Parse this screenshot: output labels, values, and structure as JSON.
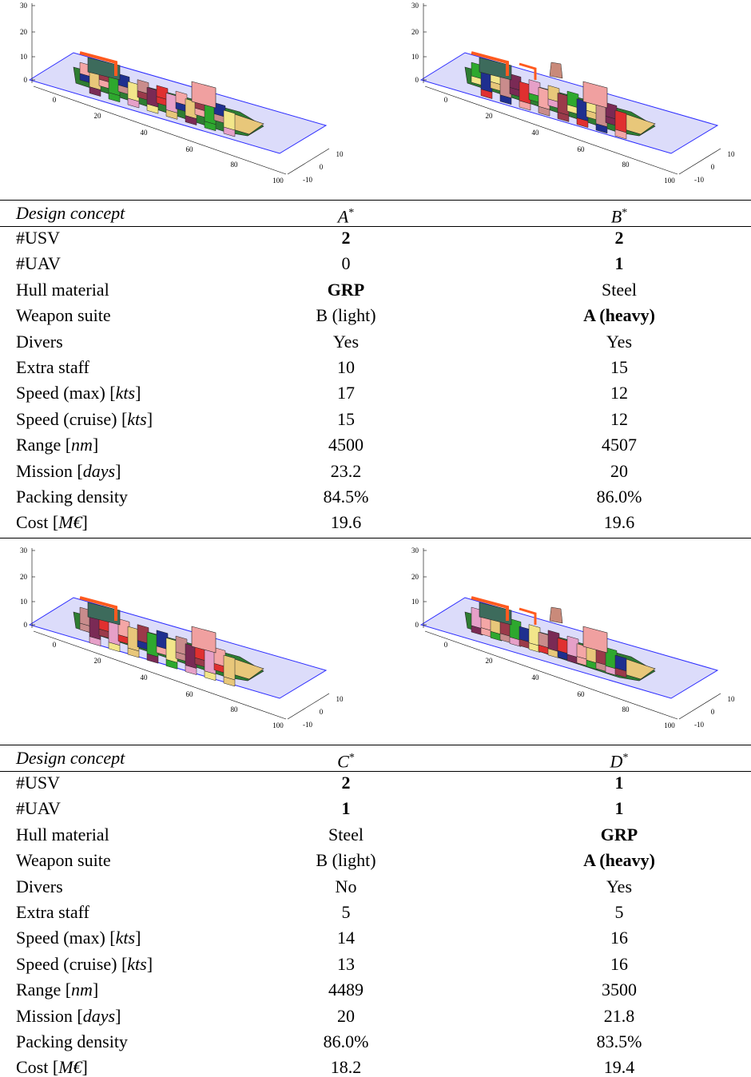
{
  "plots": [
    {
      "z_ticks": [
        30,
        20,
        10,
        0
      ],
      "x_ticks": [
        0,
        20,
        40,
        60,
        80,
        100
      ],
      "y_ticks": [
        10,
        0,
        -10
      ]
    },
    {
      "z_ticks": [
        30,
        20,
        10,
        0
      ],
      "x_ticks": [
        0,
        20,
        40,
        60,
        80,
        100
      ],
      "y_ticks": [
        10,
        0,
        -10
      ]
    },
    {
      "z_ticks": [
        30,
        20,
        10,
        0
      ],
      "x_ticks": [
        0,
        20,
        40,
        60,
        80,
        100
      ],
      "y_ticks": [
        10,
        0,
        -10
      ]
    },
    {
      "z_ticks": [
        30,
        20,
        10,
        0
      ],
      "x_ticks": [
        0,
        20,
        40,
        60,
        80,
        100
      ],
      "y_ticks": [
        10,
        0,
        -10
      ]
    }
  ],
  "tables": [
    {
      "header": [
        "Design concept",
        "A*",
        "B*"
      ],
      "rows": [
        {
          "label": "#USV",
          "cells": [
            {
              "text": "2",
              "bold": true
            },
            {
              "text": "2",
              "bold": true
            }
          ]
        },
        {
          "label": "#UAV",
          "cells": [
            {
              "text": "0",
              "bold": false
            },
            {
              "text": "1",
              "bold": true
            }
          ]
        },
        {
          "label": "Hull material",
          "cells": [
            {
              "text": "GRP",
              "bold": true
            },
            {
              "text": "Steel",
              "bold": false
            }
          ]
        },
        {
          "label": "Weapon suite",
          "cells": [
            {
              "text": "B (light)",
              "bold": false
            },
            {
              "text": "A (heavy)",
              "bold": true
            }
          ]
        },
        {
          "label": "Divers",
          "cells": [
            {
              "text": "Yes",
              "bold": false
            },
            {
              "text": "Yes",
              "bold": false
            }
          ]
        },
        {
          "label": "Extra staff",
          "cells": [
            {
              "text": "10",
              "bold": false
            },
            {
              "text": "15",
              "bold": false
            }
          ]
        },
        {
          "label": "Speed (max) [kts]",
          "cells": [
            {
              "text": "17",
              "bold": false
            },
            {
              "text": "12",
              "bold": false
            }
          ]
        },
        {
          "label": "Speed (cruise) [kts]",
          "cells": [
            {
              "text": "15",
              "bold": false
            },
            {
              "text": "12",
              "bold": false
            }
          ]
        },
        {
          "label": "Range [nm]",
          "cells": [
            {
              "text": "4500",
              "bold": false
            },
            {
              "text": "4507",
              "bold": false
            }
          ]
        },
        {
          "label": "Mission [days]",
          "cells": [
            {
              "text": "23.2",
              "bold": false
            },
            {
              "text": "20",
              "bold": false
            }
          ]
        },
        {
          "label": "Packing density",
          "cells": [
            {
              "text": "84.5%",
              "bold": false
            },
            {
              "text": "86.0%",
              "bold": false
            }
          ]
        },
        {
          "label": "Cost [M€]",
          "cells": [
            {
              "text": "19.6",
              "bold": false
            },
            {
              "text": "19.6",
              "bold": false
            }
          ]
        }
      ]
    },
    {
      "header": [
        "Design concept",
        "C*",
        "D*"
      ],
      "rows": [
        {
          "label": "#USV",
          "cells": [
            {
              "text": "2",
              "bold": true
            },
            {
              "text": "1",
              "bold": true
            }
          ]
        },
        {
          "label": "#UAV",
          "cells": [
            {
              "text": "1",
              "bold": true
            },
            {
              "text": "1",
              "bold": true
            }
          ]
        },
        {
          "label": "Hull material",
          "cells": [
            {
              "text": "Steel",
              "bold": false
            },
            {
              "text": "GRP",
              "bold": true
            }
          ]
        },
        {
          "label": "Weapon suite",
          "cells": [
            {
              "text": "B (light)",
              "bold": false
            },
            {
              "text": "A (heavy)",
              "bold": true
            }
          ]
        },
        {
          "label": "Divers",
          "cells": [
            {
              "text": "No",
              "bold": false
            },
            {
              "text": "Yes",
              "bold": false
            }
          ]
        },
        {
          "label": "Extra staff",
          "cells": [
            {
              "text": "5",
              "bold": false
            },
            {
              "text": "5",
              "bold": false
            }
          ]
        },
        {
          "label": "Speed (max) [kts]",
          "cells": [
            {
              "text": "14",
              "bold": false
            },
            {
              "text": "16",
              "bold": false
            }
          ]
        },
        {
          "label": "Speed (cruise) [kts]",
          "cells": [
            {
              "text": "13",
              "bold": false
            },
            {
              "text": "16",
              "bold": false
            }
          ]
        },
        {
          "label": "Range [nm]",
          "cells": [
            {
              "text": "4489",
              "bold": false
            },
            {
              "text": "3500",
              "bold": false
            }
          ]
        },
        {
          "label": "Mission [days]",
          "cells": [
            {
              "text": "20",
              "bold": false
            },
            {
              "text": "21.8",
              "bold": false
            }
          ]
        },
        {
          "label": "Packing density",
          "cells": [
            {
              "text": "86.0%",
              "bold": false
            },
            {
              "text": "83.5%",
              "bold": false
            }
          ]
        },
        {
          "label": "Cost [M€]",
          "cells": [
            {
              "text": "18.2",
              "bold": false
            },
            {
              "text": "19.4",
              "bold": false
            }
          ]
        }
      ]
    }
  ]
}
